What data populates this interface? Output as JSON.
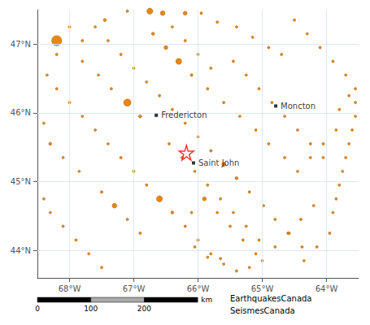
{
  "chart_data": {
    "type": "scatter",
    "xlim": [
      -68.5,
      -63.5
    ],
    "ylim": [
      43.6,
      47.5
    ],
    "xticks": [
      {
        "value": -68,
        "label": "68°W"
      },
      {
        "value": -67,
        "label": "67°W"
      },
      {
        "value": -66,
        "label": "66°W"
      },
      {
        "value": -65,
        "label": "65°W"
      },
      {
        "value": -64,
        "label": "64°W"
      }
    ],
    "yticks": [
      {
        "value": 44,
        "label": "44°N"
      },
      {
        "value": 45,
        "label": "45°N"
      },
      {
        "value": 46,
        "label": "46°N"
      },
      {
        "value": 47,
        "label": "47°N"
      }
    ],
    "grid": true,
    "series": [
      {
        "type": "scatter",
        "marker": "circle",
        "color": "#e88000",
        "x": [
          -68.2,
          -67.45,
          -67.1,
          -66.75,
          -66.55,
          -66.2,
          -65.95,
          -65.7,
          -65.4,
          -65.15,
          -64.9,
          -64.7,
          -64.5,
          -64.3,
          -64.1,
          -63.9,
          -63.7,
          -63.65,
          -63.8,
          -67.8,
          -67.55,
          -67.35,
          -67.1,
          -66.9,
          -66.7,
          -66.5,
          -66.3,
          -66.1,
          -65.85,
          -65.6,
          -65.35,
          -65.1,
          -64.9,
          -64.65,
          -64.45,
          -64.25,
          -64.05,
          -63.85,
          -64.2,
          -64.4,
          -64.6,
          -64.8,
          -65.0,
          -65.2,
          -65.4,
          -65.6,
          -65.8,
          -66.0,
          -66.2,
          -66.4,
          -66.6,
          -66.8,
          -67.0,
          -67.2,
          -67.4,
          -67.6,
          -67.8,
          -68.0,
          -68.2,
          -68.35,
          -68.2,
          -68.0,
          -67.8,
          -67.6,
          -67.4,
          -67.2,
          -67.0,
          -66.8,
          -66.6,
          -66.4,
          -66.2,
          -66.0,
          -65.8,
          -65.6,
          -65.4,
          -65.2,
          -64.98,
          -64.8,
          -64.58,
          -64.38,
          -66.45,
          -66.25,
          -66.05,
          -65.85,
          -65.65,
          -65.45,
          -65.25,
          -65.05,
          -67.5,
          -67.3,
          -67.1,
          -66.9,
          -67.85,
          -68.1,
          -68.3,
          -68.4,
          -65.45,
          -65.25,
          -65.05,
          -64.85,
          -64.65,
          -64.45,
          -64.25,
          -64.05,
          -65.9,
          -66.1,
          -65.7,
          -65.5,
          -65.3,
          -65.1,
          -65.65,
          -65.85,
          -66.05,
          -63.95,
          -64.15,
          -64.35,
          -65.8,
          -66.0,
          -66.2,
          -66.4,
          -68.4,
          -68.3,
          -68.1,
          -67.9,
          -67.7,
          -67.5,
          -63.55,
          -63.55,
          -63.55,
          -63.6,
          -63.65,
          -63.7,
          -63.75,
          -63.8,
          -63.85,
          -63.9
        ],
        "values": [
          47.05,
          47.35,
          47.48,
          47.48,
          47.45,
          47.45,
          47.45,
          47.32,
          47.25,
          47.1,
          46.95,
          46.85,
          47.35,
          47.15,
          46.95,
          46.75,
          46.55,
          46.25,
          46.05,
          46.75,
          46.55,
          46.35,
          46.15,
          45.95,
          47.15,
          46.95,
          46.75,
          46.55,
          46.35,
          46.15,
          45.95,
          45.75,
          45.55,
          45.35,
          45.15,
          45.35,
          45.55,
          45.75,
          44.65,
          44.45,
          44.25,
          44.05,
          43.85,
          43.75,
          43.7,
          43.8,
          43.95,
          44.15,
          44.35,
          44.55,
          44.75,
          44.95,
          45.15,
          45.35,
          45.55,
          45.75,
          45.95,
          46.15,
          46.35,
          46.55,
          46.85,
          47.25,
          47.05,
          47.25,
          47.05,
          46.85,
          46.65,
          46.45,
          46.25,
          46.05,
          45.85,
          45.65,
          45.45,
          45.25,
          45.05,
          44.85,
          44.65,
          44.45,
          44.25,
          44.05,
          45.55,
          45.35,
          45.15,
          44.95,
          44.75,
          44.55,
          44.35,
          44.15,
          44.85,
          44.65,
          44.45,
          44.25,
          45.15,
          45.35,
          45.55,
          45.85,
          46.75,
          46.55,
          46.35,
          46.15,
          45.95,
          45.75,
          45.55,
          45.35,
          44.75,
          44.55,
          44.55,
          44.35,
          44.15,
          43.95,
          43.88,
          43.9,
          44.05,
          44.25,
          44.05,
          43.85,
          46.65,
          46.85,
          47.05,
          47.25,
          44.75,
          44.55,
          44.35,
          44.15,
          43.95,
          43.75,
          45.95,
          46.15,
          46.35,
          45.75,
          45.55,
          45.35,
          45.15,
          44.95,
          44.75,
          44.55
        ],
        "size": [
          4.5,
          2.8,
          2.3,
          3.5,
          3.2,
          3.0,
          2.5,
          2.4,
          2.6,
          2.3,
          2.5,
          2.4,
          2.5,
          2.4,
          2.6,
          2.5,
          2.4,
          2.5,
          2.3,
          2.5,
          2.6,
          2.5,
          3.8,
          2.8,
          2.8,
          3.0,
          3.5,
          2.7,
          2.6,
          2.5,
          2.4,
          2.5,
          2.6,
          2.4,
          2.3,
          2.5,
          2.7,
          2.4,
          2.5,
          2.7,
          2.4,
          2.6,
          2.5,
          2.4,
          2.6,
          2.3,
          2.5,
          2.7,
          2.5,
          2.8,
          3.5,
          2.6,
          2.5,
          2.7,
          2.4,
          2.6,
          2.5,
          2.4,
          2.6,
          2.5,
          2.4,
          2.5,
          2.7,
          2.5,
          2.6,
          2.4,
          2.5,
          2.6,
          2.4,
          2.5,
          2.6,
          2.5,
          2.7,
          3.0,
          2.8,
          2.6,
          2.5,
          2.4,
          2.5,
          2.3,
          2.4,
          2.5,
          2.4,
          2.6,
          2.4,
          2.5,
          2.3,
          2.5,
          2.7,
          3.2,
          2.4,
          2.6,
          2.5,
          2.6,
          2.8,
          2.3,
          2.5,
          2.4,
          2.5,
          2.3,
          2.4,
          2.2,
          2.5,
          2.3,
          3.0,
          2.6,
          2.5,
          2.4,
          2.6,
          2.4,
          2.5,
          2.4,
          2.6,
          2.5,
          2.4,
          2.6,
          2.5,
          2.6,
          2.4,
          2.5,
          2.5,
          2.4,
          2.6,
          2.5,
          2.4,
          2.5,
          2.6,
          2.4,
          2.5,
          2.4,
          2.5,
          2.4,
          2.6,
          2.5,
          2.4,
          2.6
        ]
      },
      {
        "type": "scatter",
        "marker": "star",
        "color": "red",
        "x": [
          -66.18
        ],
        "values": [
          45.42
        ]
      },
      {
        "type": "scatter",
        "marker": "square",
        "color": "black",
        "x": [
          -66.65,
          -64.79,
          -66.07
        ],
        "values": [
          45.965,
          46.1,
          45.272
        ],
        "point_labels": [
          "Fredericton",
          "Moncton",
          "Saint John"
        ]
      }
    ],
    "annotations": [
      "EarthquakesCanada",
      "SeismesCanada"
    ],
    "scalebar": {
      "values": [
        0,
        100,
        200
      ],
      "label": "km"
    }
  }
}
